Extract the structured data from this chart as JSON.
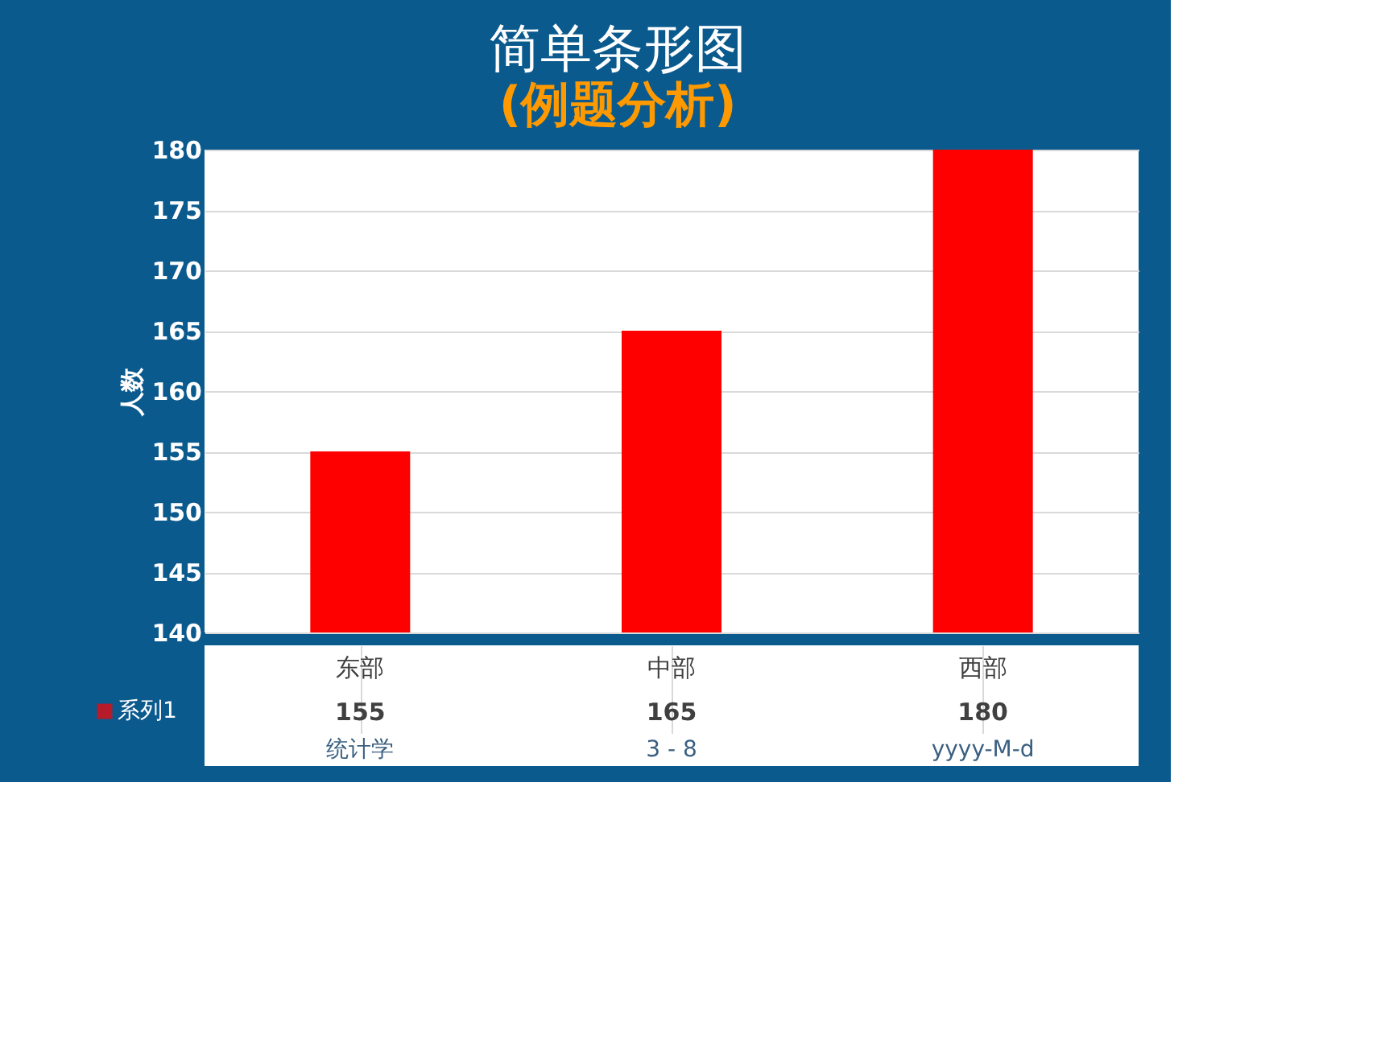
{
  "chart_data": {
    "type": "bar",
    "title": "简单条形图",
    "subtitle": "(例题分析)",
    "ylabel": "人数",
    "categories": [
      "东部",
      "中部",
      "西部"
    ],
    "series": [
      {
        "name": "系列1",
        "color": "#ff0000",
        "values": [
          155,
          165,
          180
        ]
      }
    ],
    "ylim": [
      140,
      180
    ],
    "yticks": [
      140,
      145,
      150,
      155,
      160,
      165,
      170,
      175,
      180
    ],
    "grid": "y",
    "data_labels": true,
    "annotations": [
      "统计学",
      "3 - 8",
      "yyyy-M-d"
    ]
  }
}
